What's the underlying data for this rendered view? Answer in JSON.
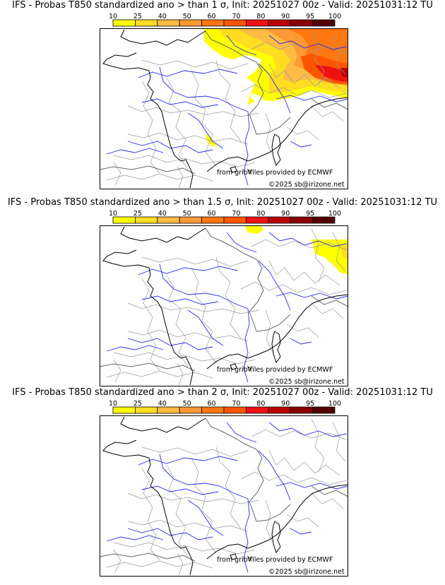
{
  "panels": [
    {
      "title": "IFS - Probas T850  standardized ano > than 1 σ, Init: 20251027 00z - Valid: 20251031:12 TU",
      "threshold_sigma": 1,
      "probability_field": [
        {
          "region": "Benelux / northern Germany",
          "prob_range": "50-70"
        },
        {
          "region": "Germany / Czechia",
          "prob_range": "60-80"
        },
        {
          "region": "Southern Germany / Austria",
          "prob_range": "70-90"
        },
        {
          "region": "Northeast France / Switzerland",
          "prob_range": "10-40"
        },
        {
          "region": "Gulf of Lion coast",
          "prob_range": "10-25"
        }
      ]
    },
    {
      "title": "IFS - Probas T850  standardized ano > than 1.5 σ, Init: 20251027 00z - Valid: 20251031:12 TU",
      "threshold_sigma": 1.5,
      "probability_field": [
        {
          "region": "Belgium / Luxembourg",
          "prob_range": "10-25"
        },
        {
          "region": "Southern Germany",
          "prob_range": "10-25"
        }
      ]
    },
    {
      "title": "IFS - Probas T850  standardized ano > than 2 σ, Init: 20251027 00z - Valid: 20251031:12 TU",
      "threshold_sigma": 2,
      "probability_field": []
    }
  ],
  "colorbar": {
    "ticks": [
      "10",
      "25",
      "40",
      "50",
      "60",
      "70",
      "80",
      "90",
      "95",
      "100"
    ],
    "colors": [
      "#ffff00",
      "#ffdd22",
      "#ffbb44",
      "#ff9933",
      "#ff7711",
      "#ff5500",
      "#ee1111",
      "#bb0000",
      "#880000",
      "#550000"
    ]
  },
  "credits": {
    "source": "from grib files provided by ECMWF",
    "copyright": "©2025 sb@irizone.net"
  },
  "colors": {
    "coast": "#000000",
    "rivers": "#2a2aee",
    "borders": "#9a9a9a",
    "p10": "#ffff00",
    "p25": "#ffdd22",
    "p40": "#ffbb44",
    "p50": "#ff9933",
    "p60": "#ff7711",
    "p70": "#ff5500",
    "p80": "#ee1111",
    "p90": "#bb0000"
  }
}
